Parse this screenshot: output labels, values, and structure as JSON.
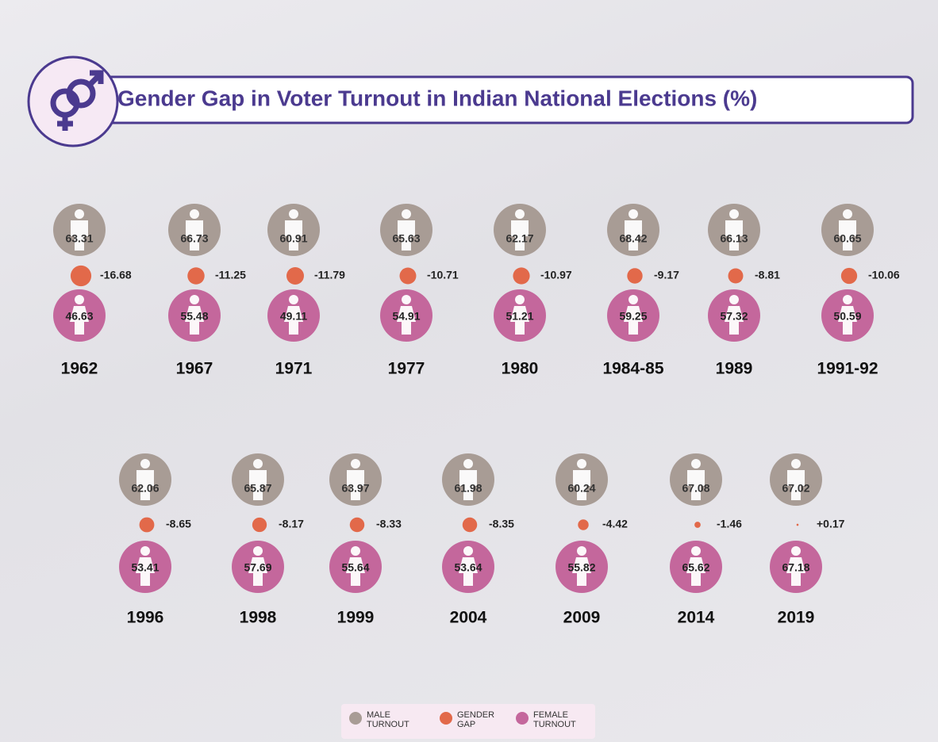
{
  "chart_data": {
    "type": "dot-grid",
    "title": "Gender Gap in Voter Turnout in Indian National Elections (%)",
    "categories": [
      "1962",
      "1967",
      "1971",
      "1977",
      "1980",
      "1984-85",
      "1989",
      "1991-92",
      "1996",
      "1998",
      "1999",
      "2004",
      "2009",
      "2014",
      "2019"
    ],
    "series": [
      {
        "name": "MALE TURNOUT",
        "color": "#a89c95",
        "values": [
          63.31,
          66.73,
          60.91,
          65.63,
          62.17,
          68.42,
          66.13,
          60.65,
          62.06,
          65.87,
          63.97,
          61.98,
          60.24,
          67.08,
          67.02
        ]
      },
      {
        "name": "GENDER GAP",
        "color": "#e2694a",
        "values": [
          -16.68,
          -11.25,
          -11.79,
          -10.71,
          -10.97,
          -9.17,
          -8.81,
          -10.06,
          -8.65,
          -8.17,
          -8.33,
          -8.35,
          -4.42,
          -1.46,
          0.17
        ],
        "value_labels": [
          "-16.68",
          "-11.25",
          "-11.79",
          "-10.71",
          "-10.97",
          "-9.17",
          "-8.81",
          "-10.06",
          "-8.65",
          "-8.17",
          "-8.33",
          "-8.35",
          "-4.42",
          "-1.46",
          "+0.17"
        ]
      },
      {
        "name": "FEMALE TURNOUT",
        "color": "#c4679c",
        "values": [
          46.63,
          55.48,
          49.11,
          54.91,
          51.21,
          59.25,
          57.32,
          50.59,
          53.41,
          57.69,
          55.64,
          53.64,
          55.82,
          65.62,
          67.18
        ]
      }
    ]
  }
}
